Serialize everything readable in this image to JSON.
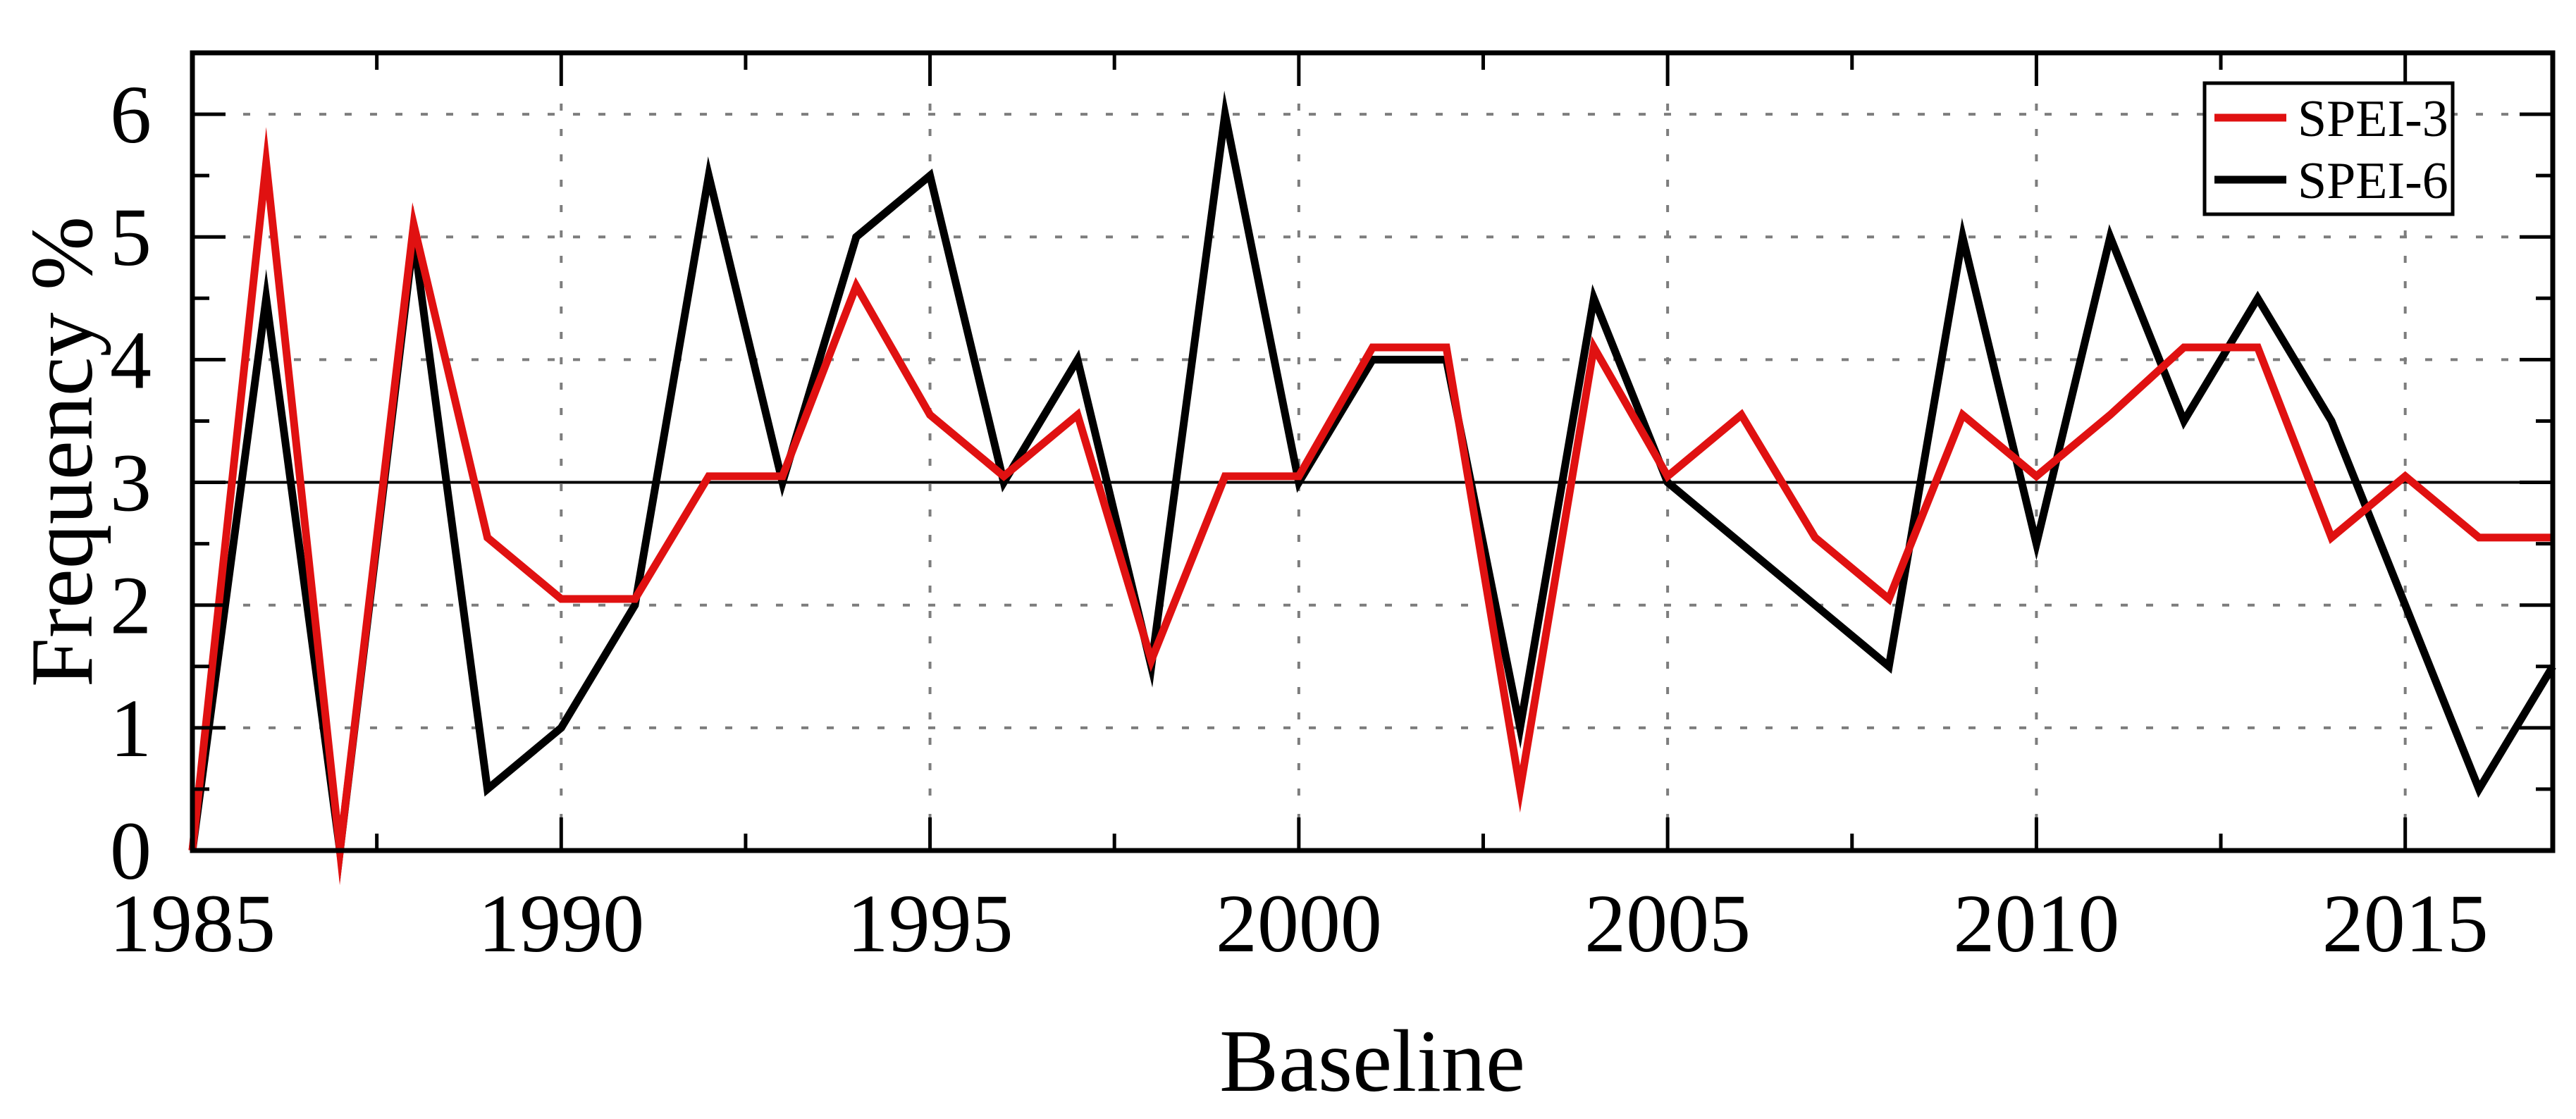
{
  "figure": {
    "ylabel": "Frequency %",
    "xlabel": "Baseline",
    "background": "#ffffff",
    "colors": {
      "axis": "#000000",
      "grid": "#7d7d7d",
      "baseline_line": "#000000"
    }
  },
  "legend": {
    "position": "top-right",
    "items": [
      {
        "label": "SPEI-3",
        "color": "#e01111"
      },
      {
        "label": "SPEI-6",
        "color": "#000000"
      }
    ]
  },
  "chart_data": {
    "type": "line",
    "title": "",
    "xlabel": "Baseline",
    "ylabel": "Frequency %",
    "xlim": [
      1985,
      2017
    ],
    "ylim": [
      0,
      6.5
    ],
    "yticks": [
      0,
      1,
      2,
      3,
      4,
      5,
      6
    ],
    "xticks": [
      1985,
      1990,
      1995,
      2000,
      2005,
      2010,
      2015
    ],
    "minor_x_step": 2.5,
    "minor_y_step": 0.5,
    "grid": "dotted gridlines at labeled major ticks; solid reference line at y=3",
    "baseline_y": 3,
    "legend_position": "top-right",
    "x": [
      1985,
      1986,
      1987,
      1988,
      1989,
      1990,
      1991,
      1992,
      1993,
      1994,
      1995,
      1996,
      1997,
      1998,
      1999,
      2000,
      2001,
      2002,
      2003,
      2004,
      2005,
      2006,
      2007,
      2008,
      2009,
      2010,
      2011,
      2012,
      2013,
      2014,
      2015,
      2016,
      2017
    ],
    "series": [
      {
        "name": "SPEI-3",
        "color": "#e01111",
        "values": [
          0,
          5.6,
          0,
          5.1,
          2.55,
          2.05,
          2.05,
          3.05,
          3.05,
          4.6,
          3.55,
          3.05,
          3.55,
          1.55,
          3.05,
          3.05,
          4.1,
          4.1,
          0.5,
          4.1,
          3.05,
          3.55,
          2.55,
          2.05,
          3.55,
          3.05,
          3.55,
          4.1,
          4.1,
          2.55,
          3.05,
          2.55,
          2.55
        ]
      },
      {
        "name": "SPEI-6",
        "color": "#000000",
        "values": [
          0,
          4.5,
          0,
          5.0,
          0.5,
          1.0,
          2.0,
          5.5,
          3.0,
          5.0,
          5.5,
          3.0,
          4.0,
          1.5,
          6.0,
          3.0,
          4.0,
          4.0,
          1.0,
          4.5,
          3.0,
          2.5,
          2.0,
          1.5,
          5.0,
          2.5,
          5.0,
          3.5,
          4.5,
          3.5,
          2.0,
          0.5,
          1.5
        ]
      }
    ]
  }
}
